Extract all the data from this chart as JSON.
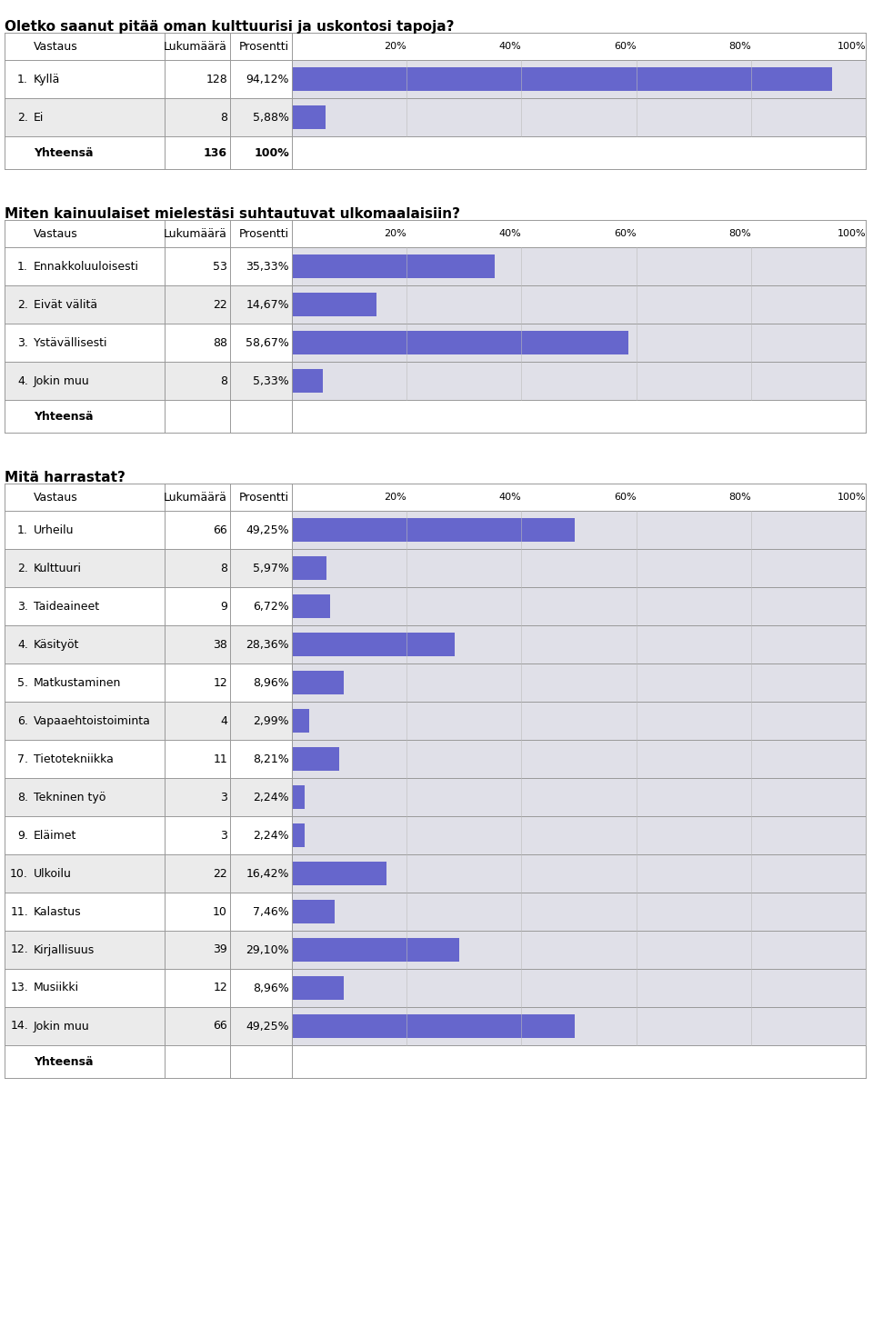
{
  "title1": "Oletko saanut pitää oman kulttuurisi ja uskontosi tapoja?",
  "table1_rows": [
    {
      "num": "1.",
      "label": "Kyllä",
      "count": 128,
      "pct": "94,12%",
      "value": 94.12
    },
    {
      "num": "2.",
      "label": "Ei",
      "count": 8,
      "pct": "5,88%",
      "value": 5.88
    }
  ],
  "table1_total": {
    "label": "Yhteensä",
    "count": "136",
    "pct": "100%"
  },
  "title2": "Miten kainuulaiset mielestäsi suhtautuvat ulkomaalaisiin?",
  "table2_rows": [
    {
      "num": "1.",
      "label": "Ennakkoluuloisesti",
      "count": 53,
      "pct": "35,33%",
      "value": 35.33
    },
    {
      "num": "2.",
      "label": "Eivät välitä",
      "count": 22,
      "pct": "14,67%",
      "value": 14.67
    },
    {
      "num": "3.",
      "label": "Ystävällisesti",
      "count": 88,
      "pct": "58,67%",
      "value": 58.67
    },
    {
      "num": "4.",
      "label": "Jokin muu",
      "count": 8,
      "pct": "5,33%",
      "value": 5.33
    }
  ],
  "table2_total": {
    "label": "Yhteensä"
  },
  "title3": "Mitä harrastat?",
  "table3_rows": [
    {
      "num": "1.",
      "label": "Urheilu",
      "count": 66,
      "pct": "49,25%",
      "value": 49.25
    },
    {
      "num": "2.",
      "label": "Kulttuuri",
      "count": 8,
      "pct": "5,97%",
      "value": 5.97
    },
    {
      "num": "3.",
      "label": "Taideaineet",
      "count": 9,
      "pct": "6,72%",
      "value": 6.72
    },
    {
      "num": "4.",
      "label": "Käsityöt",
      "count": 38,
      "pct": "28,36%",
      "value": 28.36
    },
    {
      "num": "5.",
      "label": "Matkustaminen",
      "count": 12,
      "pct": "8,96%",
      "value": 8.96
    },
    {
      "num": "6.",
      "label": "Vapaaehtoistoiminta",
      "count": 4,
      "pct": "2,99%",
      "value": 2.99
    },
    {
      "num": "7.",
      "label": "Tietotekniikka",
      "count": 11,
      "pct": "8,21%",
      "value": 8.21
    },
    {
      "num": "8.",
      "label": "Tekninen työ",
      "count": 3,
      "pct": "2,24%",
      "value": 2.24
    },
    {
      "num": "9.",
      "label": "Eläimet",
      "count": 3,
      "pct": "2,24%",
      "value": 2.24
    },
    {
      "num": "10.",
      "label": "Ulkoilu",
      "count": 22,
      "pct": "16,42%",
      "value": 16.42
    },
    {
      "num": "11.",
      "label": "Kalastus",
      "count": 10,
      "pct": "7,46%",
      "value": 7.46
    },
    {
      "num": "12.",
      "label": "Kirjallisuus",
      "count": 39,
      "pct": "29,10%",
      "value": 29.1
    },
    {
      "num": "13.",
      "label": "Musiikki",
      "count": 12,
      "pct": "8,96%",
      "value": 8.96
    },
    {
      "num": "14.",
      "label": "Jokin muu",
      "count": 66,
      "pct": "49,25%",
      "value": 49.25
    }
  ],
  "table3_total": {
    "label": "Yhteensä"
  },
  "bar_color": "#6666cc",
  "bar_bg_color": "#e0e0e8",
  "row_bg_white": "#ffffff",
  "row_bg_gray": "#ebebeb",
  "border_color": "#999999",
  "title_fontsize": 11,
  "table_fontsize": 9,
  "bar_area_pct_ticks": [
    20,
    40,
    60,
    80,
    100
  ]
}
